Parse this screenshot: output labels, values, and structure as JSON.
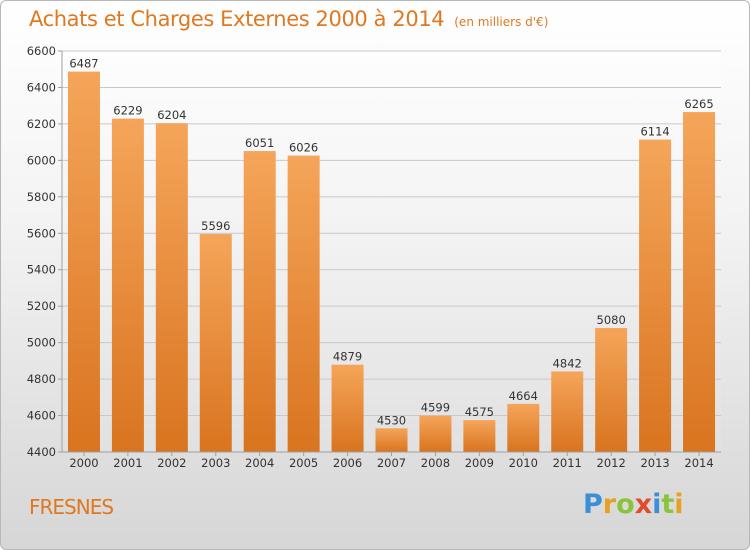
{
  "title": "Achats et Charges Externes 2000 à 2014",
  "unit_note": "(en milliers d'€)",
  "city": "FRESNES",
  "brand": {
    "letters": [
      "P",
      "r",
      "o",
      "x",
      "i",
      "t",
      "i"
    ],
    "colors": [
      "#3a8fd6",
      "#e8a020",
      "#8ac43c",
      "#e24b2e",
      "#3a8fd6",
      "#8ac43c",
      "#e8a020"
    ]
  },
  "colors": {
    "bar_top": "#f5a55a",
    "bar_bottom": "#d9741f",
    "accent": "#e07820",
    "grid": "#c8c8c8"
  },
  "chart_data": {
    "type": "bar",
    "categories": [
      "2000",
      "2001",
      "2002",
      "2003",
      "2004",
      "2005",
      "2006",
      "2007",
      "2008",
      "2009",
      "2010",
      "2011",
      "2012",
      "2013",
      "2014"
    ],
    "values": [
      6487,
      6229,
      6204,
      5596,
      6051,
      6026,
      4879,
      4530,
      4599,
      4575,
      4664,
      4842,
      5080,
      6114,
      6265
    ],
    "ylim": [
      4400,
      6600
    ],
    "yticks": [
      4400,
      4600,
      4800,
      5000,
      5200,
      5400,
      5600,
      5800,
      6000,
      6200,
      6400,
      6600
    ],
    "grid": true,
    "xlabel": "",
    "ylabel": ""
  }
}
